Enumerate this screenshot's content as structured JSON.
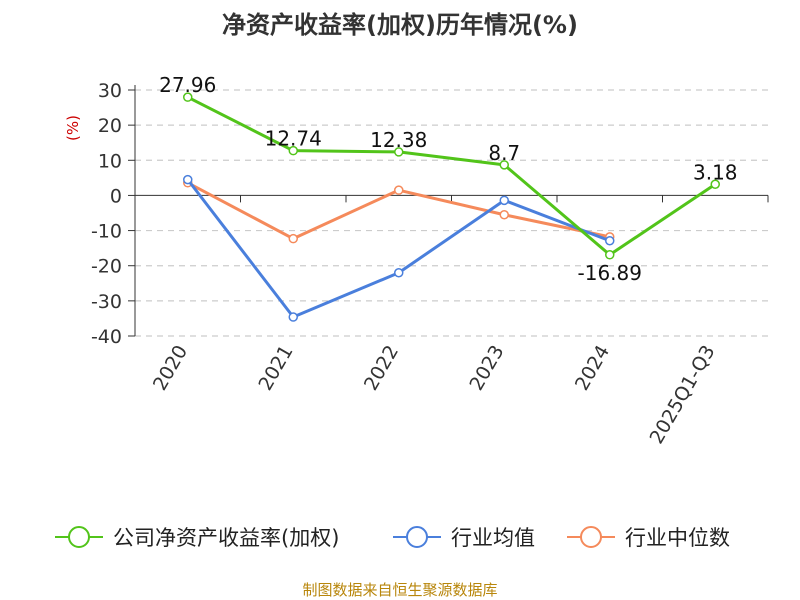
{
  "chart_data": {
    "type": "line",
    "title": "净资产收益率(加权)历年情况(%)",
    "ylabel": "(%)",
    "categories": [
      "2020",
      "2021",
      "2022",
      "2023",
      "2024",
      "2025Q1-Q3"
    ],
    "ylim": [
      -40,
      30
    ],
    "yticks": [
      30,
      20,
      10,
      0,
      -10,
      -20,
      -30,
      -40
    ],
    "grid": true,
    "legend_position": "bottom",
    "series": [
      {
        "name": "公司净资产收益率(加权)",
        "color": "#52c41a",
        "values": [
          27.96,
          12.74,
          12.38,
          8.7,
          -16.89,
          3.18
        ],
        "labels": [
          "27.96",
          "12.74",
          "12.38",
          "8.7",
          "-16.89",
          "3.18"
        ]
      },
      {
        "name": "行业均值",
        "color": "#4a7fdc",
        "values": [
          4.5,
          -34.6,
          -22.0,
          -1.4,
          -12.9,
          null
        ]
      },
      {
        "name": "行业中位数",
        "color": "#f58a5b",
        "values": [
          3.6,
          -12.3,
          1.5,
          -5.5,
          -11.8,
          null
        ]
      }
    ]
  },
  "footer": {
    "source": "制图数据来自恒生聚源数据库"
  }
}
